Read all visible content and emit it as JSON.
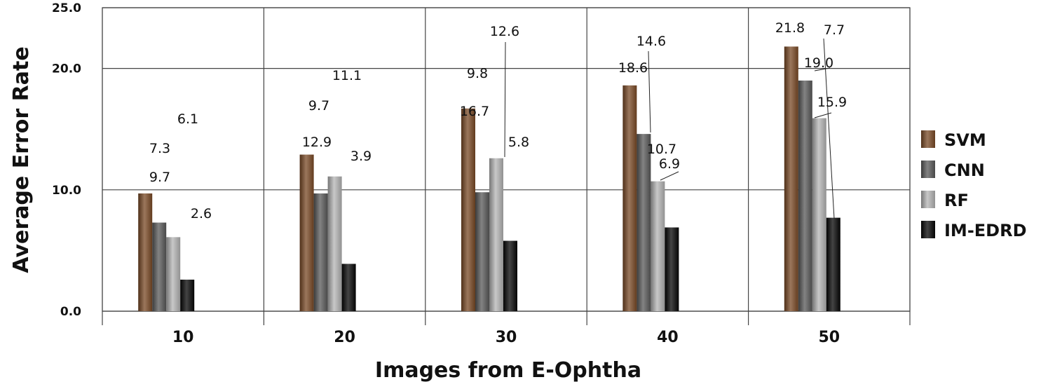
{
  "chart_data": {
    "type": "bar",
    "title": "",
    "xlabel": "Images from E-Ophtha",
    "ylabel": "Average Error Rate",
    "categories": [
      "10",
      "20",
      "30",
      "40",
      "50"
    ],
    "series": [
      {
        "name": "SVM",
        "values": [
          9.7,
          12.9,
          16.7,
          18.6,
          21.8
        ],
        "labels": [
          "9.7",
          "12.9",
          "16.7",
          "18.6",
          "21.8"
        ],
        "color": "#7a4a26"
      },
      {
        "name": "CNN",
        "values": [
          7.3,
          9.7,
          9.8,
          14.6,
          19.0
        ],
        "labels": [
          "7.3",
          "9.7",
          "9.8",
          "14.6",
          "19.0"
        ],
        "color": "#5a5a5a"
      },
      {
        "name": "RF",
        "values": [
          6.1,
          11.1,
          12.6,
          10.7,
          15.9
        ],
        "labels": [
          "6.1",
          "11.1",
          "12.6",
          "10.7",
          "15.9"
        ],
        "color": "#b5b5b5"
      },
      {
        "name": "IM-EDRD",
        "values": [
          2.6,
          3.9,
          5.8,
          6.9,
          7.7
        ],
        "labels": [
          "2.6",
          "3.9",
          "5.8",
          "6.9",
          "7.7"
        ],
        "color": "#050505"
      }
    ],
    "yticks": [
      "0.0",
      "10.0",
      "20.0",
      "25.0"
    ],
    "ytick_values": [
      0,
      10,
      20,
      25
    ],
    "ylim": [
      0,
      25
    ],
    "grid": true,
    "legend_position": "right"
  }
}
